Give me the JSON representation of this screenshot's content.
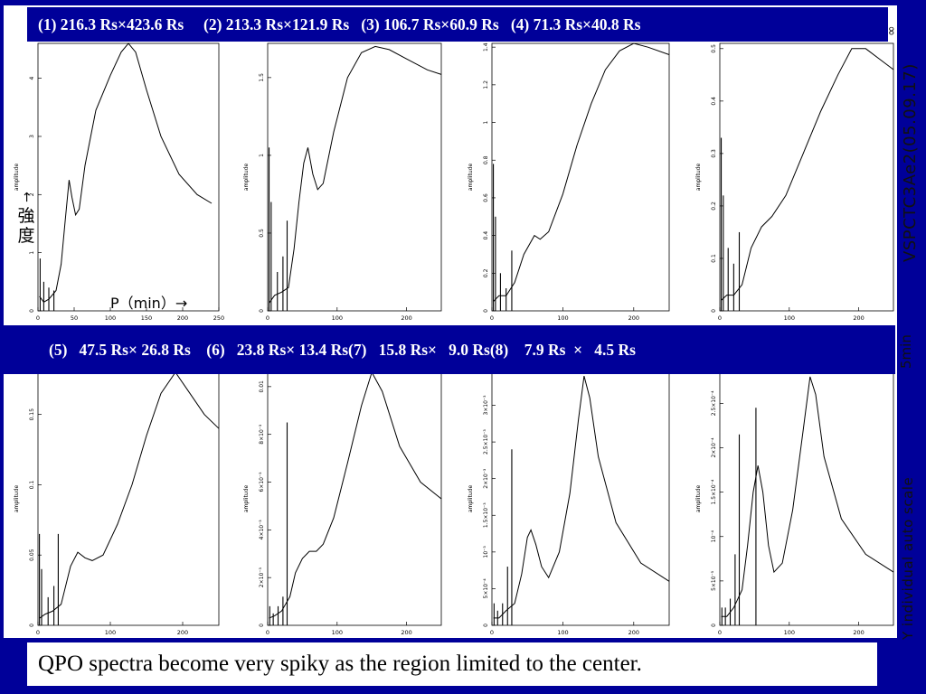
{
  "header_row1": "(1) 216.3 Rs×423.6 Rs     (2) 213.3 Rs×121.9 Rs   (3) 106.7 Rs×60.9 Rs   (4) 71.3 Rs×40.8 Rs",
  "header_row2": "(5)   47.5 Rs× 26.8 Rs    (6)   23.8 Rs× 13.4 Rs(7)   15.8 Rs×   9.0 Rs(8)    7.9 Rs  ×   4.5 Rs",
  "y_label_jp": "強度",
  "y_arrow": "→",
  "x_label": "P（min）→",
  "side_text_1": "VSPCTC3Ae2(05.09.17)",
  "side_text_2": "5min",
  "side_text_3": "Y individual auto scale",
  "side_text_4": "∞",
  "caption": "QPO spectra become very spiky as the region limited to the center.",
  "chart_data": [
    {
      "type": "line",
      "ylabel": "amplitude",
      "xlim": [
        0,
        250
      ],
      "ylim": [
        0,
        4.6
      ],
      "xticks": [
        0,
        50,
        100,
        150,
        200,
        250
      ],
      "yticks": [
        {
          "v": 0,
          "t": "0"
        },
        {
          "v": 1,
          "t": "1"
        },
        {
          "v": 2,
          "t": "2"
        },
        {
          "v": 3,
          "t": "3"
        },
        {
          "v": 4,
          "t": "4"
        }
      ],
      "spikes": [
        [
          3,
          0.9
        ],
        [
          8,
          0.5
        ],
        [
          15,
          0.4
        ],
        [
          22,
          0.35
        ]
      ],
      "series": [
        {
          "values": [
            [
              2,
              0.25
            ],
            [
              8,
              0.15
            ],
            [
              15,
              0.2
            ],
            [
              25,
              0.35
            ],
            [
              32,
              0.8
            ],
            [
              38,
              1.6
            ],
            [
              43,
              2.25
            ],
            [
              47,
              1.95
            ],
            [
              52,
              1.65
            ],
            [
              57,
              1.75
            ],
            [
              65,
              2.5
            ],
            [
              80,
              3.45
            ],
            [
              100,
              4.05
            ],
            [
              115,
              4.45
            ],
            [
              125,
              4.6
            ],
            [
              135,
              4.45
            ],
            [
              150,
              3.8
            ],
            [
              170,
              3.0
            ],
            [
              195,
              2.35
            ],
            [
              220,
              2.0
            ],
            [
              240,
              1.85
            ]
          ]
        }
      ]
    },
    {
      "type": "line",
      "ylabel": "amplitude",
      "xlim": [
        0,
        250
      ],
      "ylim": [
        0,
        1.72
      ],
      "xticks": [
        0,
        100,
        200
      ],
      "yticks": [
        {
          "v": 0,
          "t": "0"
        },
        {
          "v": 0.5,
          "t": "0.5"
        },
        {
          "v": 1,
          "t": "1"
        },
        {
          "v": 1.5,
          "t": "1.5"
        }
      ],
      "spikes": [
        [
          2,
          1.05
        ],
        [
          5,
          0.7
        ],
        [
          14,
          0.25
        ],
        [
          22,
          0.35
        ],
        [
          28,
          0.58
        ]
      ],
      "series": [
        {
          "values": [
            [
              2,
              0.05
            ],
            [
              10,
              0.1
            ],
            [
              20,
              0.12
            ],
            [
              30,
              0.15
            ],
            [
              38,
              0.4
            ],
            [
              45,
              0.7
            ],
            [
              52,
              0.95
            ],
            [
              58,
              1.05
            ],
            [
              65,
              0.88
            ],
            [
              72,
              0.78
            ],
            [
              80,
              0.82
            ],
            [
              95,
              1.15
            ],
            [
              115,
              1.5
            ],
            [
              135,
              1.66
            ],
            [
              155,
              1.7
            ],
            [
              175,
              1.68
            ],
            [
              200,
              1.62
            ],
            [
              230,
              1.55
            ],
            [
              250,
              1.52
            ]
          ]
        }
      ]
    },
    {
      "type": "line",
      "ylabel": "amplitude",
      "xlim": [
        0,
        250
      ],
      "ylim": [
        0,
        1.42
      ],
      "xticks": [
        0,
        100,
        200
      ],
      "yticks": [
        {
          "v": 0,
          "t": "0"
        },
        {
          "v": 0.2,
          "t": "0.2"
        },
        {
          "v": 0.4,
          "t": "0.4"
        },
        {
          "v": 0.6,
          "t": "0.6"
        },
        {
          "v": 0.8,
          "t": "0.8"
        },
        {
          "v": 1,
          "t": "1"
        },
        {
          "v": 1.2,
          "t": "1.2"
        },
        {
          "v": 1.4,
          "t": "1.4"
        }
      ],
      "spikes": [
        [
          2,
          0.78
        ],
        [
          5,
          0.5
        ],
        [
          12,
          0.2
        ],
        [
          20,
          0.12
        ],
        [
          28,
          0.32
        ]
      ],
      "series": [
        {
          "values": [
            [
              2,
              0.05
            ],
            [
              10,
              0.08
            ],
            [
              20,
              0.08
            ],
            [
              32,
              0.15
            ],
            [
              45,
              0.3
            ],
            [
              60,
              0.4
            ],
            [
              68,
              0.38
            ],
            [
              80,
              0.42
            ],
            [
              100,
              0.62
            ],
            [
              120,
              0.88
            ],
            [
              140,
              1.1
            ],
            [
              160,
              1.28
            ],
            [
              180,
              1.38
            ],
            [
              200,
              1.42
            ],
            [
              220,
              1.4
            ],
            [
              250,
              1.36
            ]
          ]
        }
      ]
    },
    {
      "type": "line",
      "ylabel": "amplitude",
      "xlim": [
        0,
        250
      ],
      "ylim": [
        0,
        0.51
      ],
      "xticks": [
        0,
        100,
        200
      ],
      "yticks": [
        {
          "v": 0,
          "t": "0"
        },
        {
          "v": 0.1,
          "t": "0.1"
        },
        {
          "v": 0.2,
          "t": "0.2"
        },
        {
          "v": 0.3,
          "t": "0.3"
        },
        {
          "v": 0.4,
          "t": "0.4"
        },
        {
          "v": 0.5,
          "t": "0.5"
        }
      ],
      "spikes": [
        [
          2,
          0.33
        ],
        [
          5,
          0.22
        ],
        [
          12,
          0.12
        ],
        [
          20,
          0.09
        ],
        [
          28,
          0.15
        ]
      ],
      "series": [
        {
          "values": [
            [
              2,
              0.02
            ],
            [
              10,
              0.03
            ],
            [
              20,
              0.03
            ],
            [
              32,
              0.05
            ],
            [
              45,
              0.12
            ],
            [
              60,
              0.16
            ],
            [
              75,
              0.18
            ],
            [
              95,
              0.22
            ],
            [
              120,
              0.3
            ],
            [
              145,
              0.38
            ],
            [
              170,
              0.45
            ],
            [
              190,
              0.5
            ],
            [
              210,
              0.5
            ],
            [
              230,
              0.48
            ],
            [
              250,
              0.46
            ]
          ]
        }
      ]
    },
    {
      "type": "line",
      "ylabel": "amplitude",
      "xlim": [
        0,
        250
      ],
      "ylim": [
        0,
        0.18
      ],
      "xticks": [
        0,
        100,
        200
      ],
      "yticks": [
        {
          "v": 0,
          "t": "0"
        },
        {
          "v": 0.05,
          "t": "0.05"
        },
        {
          "v": 0.1,
          "t": "0.1"
        },
        {
          "v": 0.15,
          "t": "0.15"
        }
      ],
      "spikes": [
        [
          2,
          0.065
        ],
        [
          5,
          0.04
        ],
        [
          14,
          0.02
        ],
        [
          22,
          0.028
        ],
        [
          28,
          0.065
        ]
      ],
      "series": [
        {
          "values": [
            [
              2,
              0.005
            ],
            [
              10,
              0.008
            ],
            [
              20,
              0.01
            ],
            [
              32,
              0.015
            ],
            [
              45,
              0.042
            ],
            [
              55,
              0.052
            ],
            [
              65,
              0.048
            ],
            [
              75,
              0.046
            ],
            [
              90,
              0.05
            ],
            [
              110,
              0.072
            ],
            [
              130,
              0.1
            ],
            [
              150,
              0.135
            ],
            [
              170,
              0.165
            ],
            [
              190,
              0.18
            ],
            [
              210,
              0.165
            ],
            [
              230,
              0.15
            ],
            [
              250,
              0.14
            ]
          ]
        }
      ]
    },
    {
      "type": "line",
      "ylabel": "amplitude",
      "xlim": [
        0,
        250
      ],
      "ylim": [
        0,
        0.0106
      ],
      "xticks": [
        0,
        100,
        200
      ],
      "yticks": [
        {
          "v": 0,
          "t": "0"
        },
        {
          "v": 0.002,
          "t": "2×10⁻³"
        },
        {
          "v": 0.004,
          "t": "4×10⁻³"
        },
        {
          "v": 0.006,
          "t": "6×10⁻³"
        },
        {
          "v": 0.008,
          "t": "8×10⁻³"
        },
        {
          "v": 0.01,
          "t": "0.01"
        }
      ],
      "spikes": [
        [
          3,
          0.0008
        ],
        [
          8,
          0.0005
        ],
        [
          15,
          0.0008
        ],
        [
          22,
          0.0012
        ],
        [
          28,
          0.0085
        ]
      ],
      "series": [
        {
          "values": [
            [
              2,
              0.0003
            ],
            [
              10,
              0.0004
            ],
            [
              20,
              0.0006
            ],
            [
              32,
              0.0012
            ],
            [
              40,
              0.0022
            ],
            [
              50,
              0.0028
            ],
            [
              60,
              0.0031
            ],
            [
              70,
              0.0031
            ],
            [
              80,
              0.0034
            ],
            [
              95,
              0.0045
            ],
            [
              115,
              0.0068
            ],
            [
              135,
              0.0092
            ],
            [
              150,
              0.0106
            ],
            [
              165,
              0.0098
            ],
            [
              190,
              0.0075
            ],
            [
              220,
              0.006
            ],
            [
              250,
              0.0053
            ]
          ]
        }
      ]
    },
    {
      "type": "line",
      "ylabel": "amplitude",
      "xlim": [
        0,
        250
      ],
      "ylim": [
        0,
        0.00345
      ],
      "xticks": [
        0,
        100,
        200
      ],
      "yticks": [
        {
          "v": 0,
          "t": "0"
        },
        {
          "v": 0.0005,
          "t": "5×10⁻⁴"
        },
        {
          "v": 0.001,
          "t": "10⁻³"
        },
        {
          "v": 0.0015,
          "t": "1.5×10⁻³"
        },
        {
          "v": 0.002,
          "t": "2×10⁻³"
        },
        {
          "v": 0.0025,
          "t": "2.5×10⁻³"
        },
        {
          "v": 0.003,
          "t": "3×10⁻³"
        }
      ],
      "spikes": [
        [
          3,
          0.0003
        ],
        [
          8,
          0.0002
        ],
        [
          15,
          0.0003
        ],
        [
          22,
          0.0008
        ],
        [
          28,
          0.0024
        ]
      ],
      "series": [
        {
          "values": [
            [
              2,
              0.0001
            ],
            [
              10,
              0.0001
            ],
            [
              20,
              0.0002
            ],
            [
              32,
              0.0003
            ],
            [
              42,
              0.0007
            ],
            [
              50,
              0.0012
            ],
            [
              55,
              0.0013
            ],
            [
              62,
              0.0011
            ],
            [
              70,
              0.0008
            ],
            [
              80,
              0.00065
            ],
            [
              95,
              0.001
            ],
            [
              110,
              0.0018
            ],
            [
              122,
              0.0028
            ],
            [
              130,
              0.0034
            ],
            [
              138,
              0.0031
            ],
            [
              150,
              0.0023
            ],
            [
              175,
              0.0014
            ],
            [
              210,
              0.00085
            ],
            [
              250,
              0.0006
            ]
          ]
        }
      ]
    },
    {
      "type": "line",
      "ylabel": "amplitude",
      "xlim": [
        0,
        250
      ],
      "ylim": [
        0,
        0.000285
      ],
      "xticks": [
        0,
        100,
        200
      ],
      "yticks": [
        {
          "v": 0,
          "t": "0"
        },
        {
          "v": 5e-05,
          "t": "5×10⁻⁵"
        },
        {
          "v": 0.0001,
          "t": "10⁻⁴"
        },
        {
          "v": 0.00015,
          "t": "1.5×10⁻⁴"
        },
        {
          "v": 0.0002,
          "t": "2×10⁻⁴"
        },
        {
          "v": 0.00025,
          "t": "2.5×10⁻⁴"
        }
      ],
      "spikes": [
        [
          3,
          2e-05
        ],
        [
          8,
          2e-05
        ],
        [
          15,
          3e-05
        ],
        [
          22,
          8e-05
        ],
        [
          28,
          0.000215
        ],
        [
          52,
          0.000245
        ]
      ],
      "series": [
        {
          "values": [
            [
              2,
              1e-05
            ],
            [
              10,
              1e-05
            ],
            [
              20,
              2e-05
            ],
            [
              32,
              4e-05
            ],
            [
              40,
              9e-05
            ],
            [
              48,
              0.00015
            ],
            [
              55,
              0.00018
            ],
            [
              62,
              0.00015
            ],
            [
              70,
              9e-05
            ],
            [
              78,
              6e-05
            ],
            [
              90,
              7e-05
            ],
            [
              105,
              0.00013
            ],
            [
              120,
              0.00022
            ],
            [
              130,
              0.00028
            ],
            [
              138,
              0.00026
            ],
            [
              150,
              0.00019
            ],
            [
              175,
              0.00012
            ],
            [
              210,
              8e-05
            ],
            [
              250,
              6e-05
            ]
          ]
        }
      ]
    }
  ]
}
